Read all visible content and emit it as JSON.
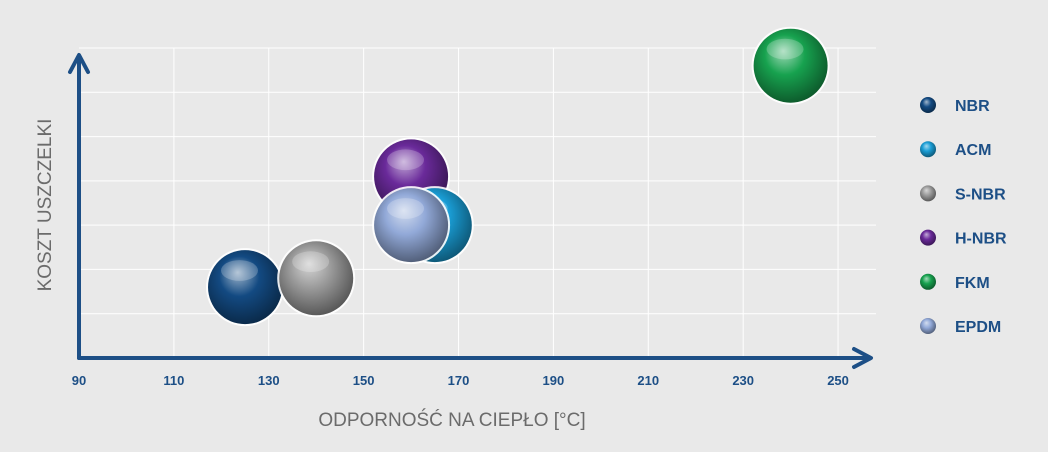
{
  "chart_data": {
    "type": "scatter",
    "xlabel": "ODPORNOŚĆ NA CIEPŁO [°C]",
    "ylabel": "KOSZT USZCZELKI",
    "xlim": [
      90,
      258
    ],
    "ylim": [
      0,
      7
    ],
    "x_ticks": [
      "90",
      "110",
      "130",
      "150",
      "170",
      "190",
      "210",
      "230",
      "250"
    ],
    "y_ticks_count": 7,
    "grid": true,
    "legend_position": "right",
    "series": [
      {
        "name": "NBR",
        "x": 125,
        "y": 1.6,
        "color": "#134a82"
      },
      {
        "name": "ACM",
        "x": 165,
        "y": 3.0,
        "color": "#1a9ed6"
      },
      {
        "name": "S-NBR",
        "x": 140,
        "y": 1.8,
        "color": "#9c9c9c"
      },
      {
        "name": "H-NBR",
        "x": 160,
        "y": 4.1,
        "color": "#6a2a9a"
      },
      {
        "name": "FKM",
        "x": 240,
        "y": 6.6,
        "color": "#17a24f"
      },
      {
        "name": "EPDM",
        "x": 160,
        "y": 3.0,
        "color": "#92a9d8"
      }
    ],
    "draw_order": [
      "FKM",
      "H-NBR",
      "ACM",
      "EPDM",
      "NBR",
      "S-NBR"
    ]
  }
}
